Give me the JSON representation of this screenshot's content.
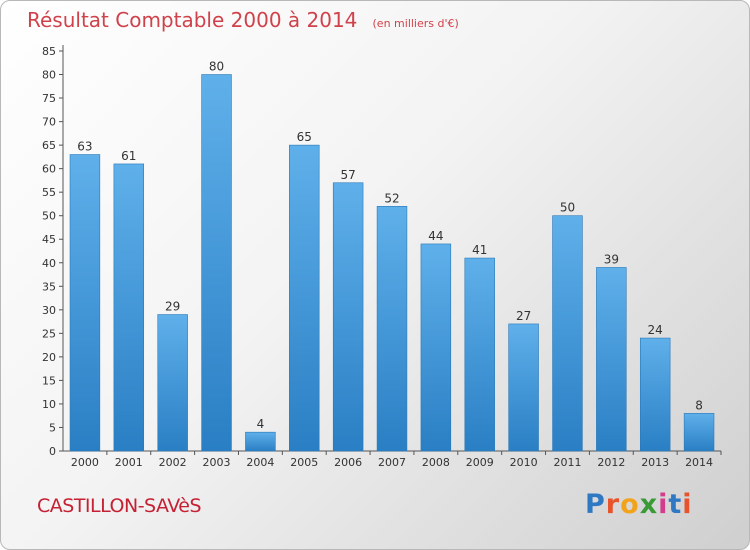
{
  "header": {
    "title": "Résultat Comptable 2000 à 2014",
    "subtitle": "(en milliers d'€)"
  },
  "footer": {
    "commune": "CASTILLON-SAVèS",
    "logo": {
      "text": "Proxiti",
      "letters": [
        {
          "char": "P",
          "color": "#2f78c4"
        },
        {
          "char": "r",
          "color": "#e8532b"
        },
        {
          "char": "o",
          "color": "#f2a31c"
        },
        {
          "char": "x",
          "color": "#3a9a35"
        },
        {
          "char": "i",
          "color": "#d43c8d"
        },
        {
          "char": "t",
          "color": "#2f78c4"
        },
        {
          "char": "i",
          "color": "#e8532b"
        }
      ]
    }
  },
  "colors": {
    "bar_top": "#5fb0ea",
    "bar_bottom": "#2a7fc4",
    "title": "#d0424b"
  },
  "chart_data": {
    "type": "bar",
    "title": "Résultat Comptable 2000 à 2014",
    "subtitle": "(en milliers d'€)",
    "categories": [
      "2000",
      "2001",
      "2002",
      "2003",
      "2004",
      "2005",
      "2006",
      "2007",
      "2008",
      "2009",
      "2010",
      "2011",
      "2012",
      "2013",
      "2014"
    ],
    "values": [
      63,
      61,
      29,
      80,
      4,
      65,
      57,
      52,
      44,
      41,
      27,
      50,
      39,
      24,
      8
    ],
    "ylim": [
      0,
      85
    ],
    "yticks": [
      0,
      5,
      10,
      15,
      20,
      25,
      30,
      35,
      40,
      45,
      50,
      55,
      60,
      65,
      70,
      75,
      80,
      85
    ],
    "grid": false,
    "legend": "none",
    "data_labels": true
  }
}
